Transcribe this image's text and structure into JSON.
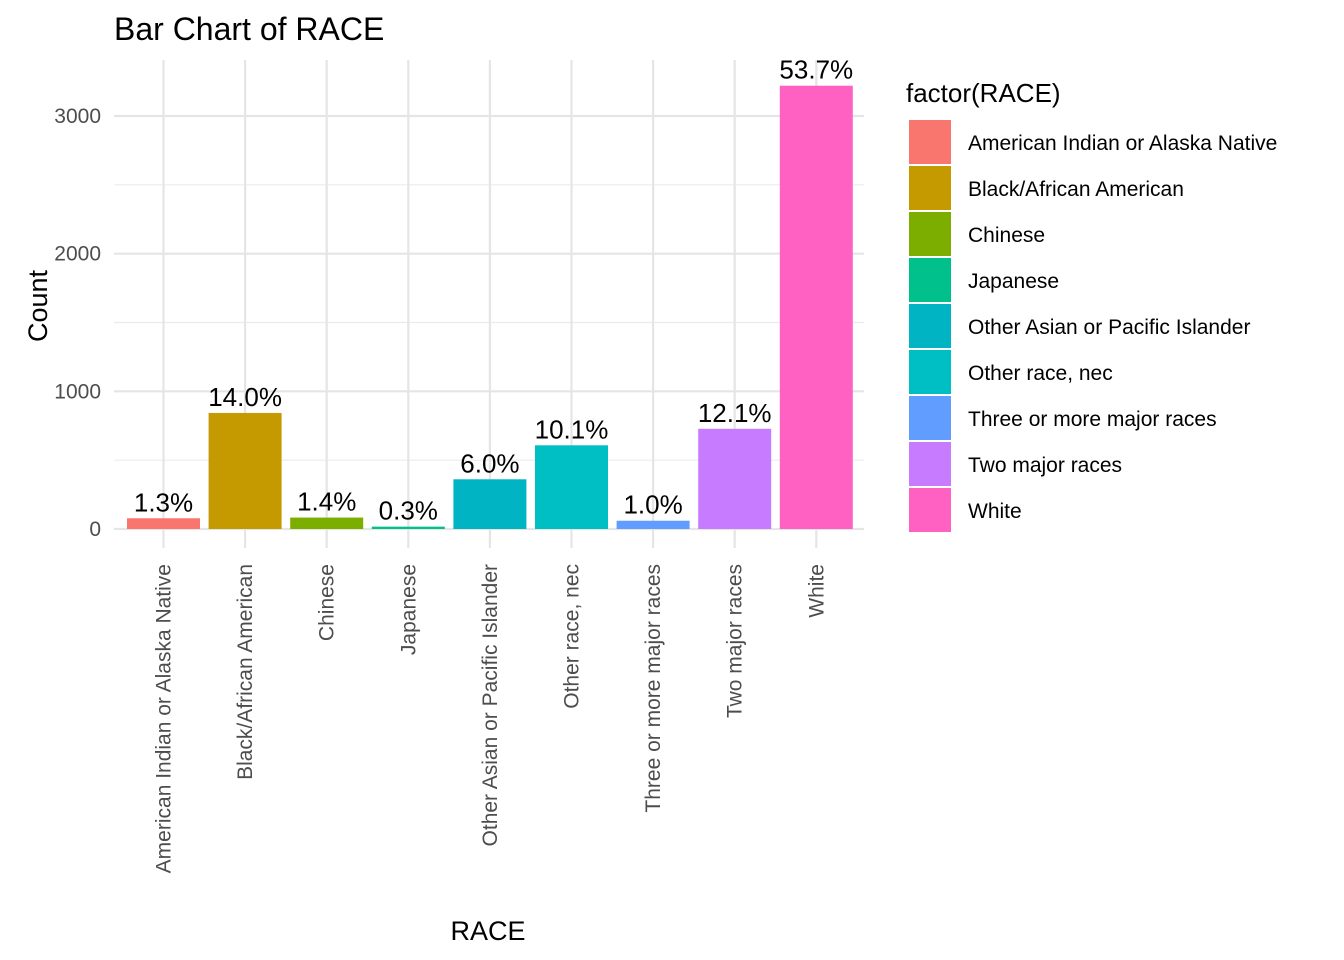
{
  "chart_data": {
    "type": "bar",
    "title": "Bar Chart of RACE",
    "xlabel": "RACE",
    "ylabel": "Count",
    "ylim": [
      0,
      3200
    ],
    "yticks": [
      0,
      1000,
      2000,
      3000
    ],
    "ytick_labels": [
      "0",
      "1000",
      "2000",
      "3000"
    ],
    "grid": true,
    "legend_position": "right",
    "legend_title": "factor(RACE)",
    "categories": [
      "American Indian or Alaska Native",
      "Black/African American",
      "Chinese",
      "Japanese",
      "Other Asian or Pacific Islander",
      "Other race, nec",
      "Three or more major races",
      "Two major races",
      "White"
    ],
    "values": [
      78,
      843,
      83,
      17,
      361,
      608,
      60,
      728,
      3220
    ],
    "labels": [
      "1.3%",
      "14.0%",
      "1.4%",
      "0.3%",
      "6.0%",
      "10.1%",
      "1.0%",
      "12.1%",
      "53.7%"
    ],
    "colors": [
      "#F8766D",
      "#C49A00",
      "#7CAE00",
      "#00C08B",
      "#00B4C4",
      "#00BFC4",
      "#619CFF",
      "#C77CFF",
      "#FF61C3"
    ]
  }
}
